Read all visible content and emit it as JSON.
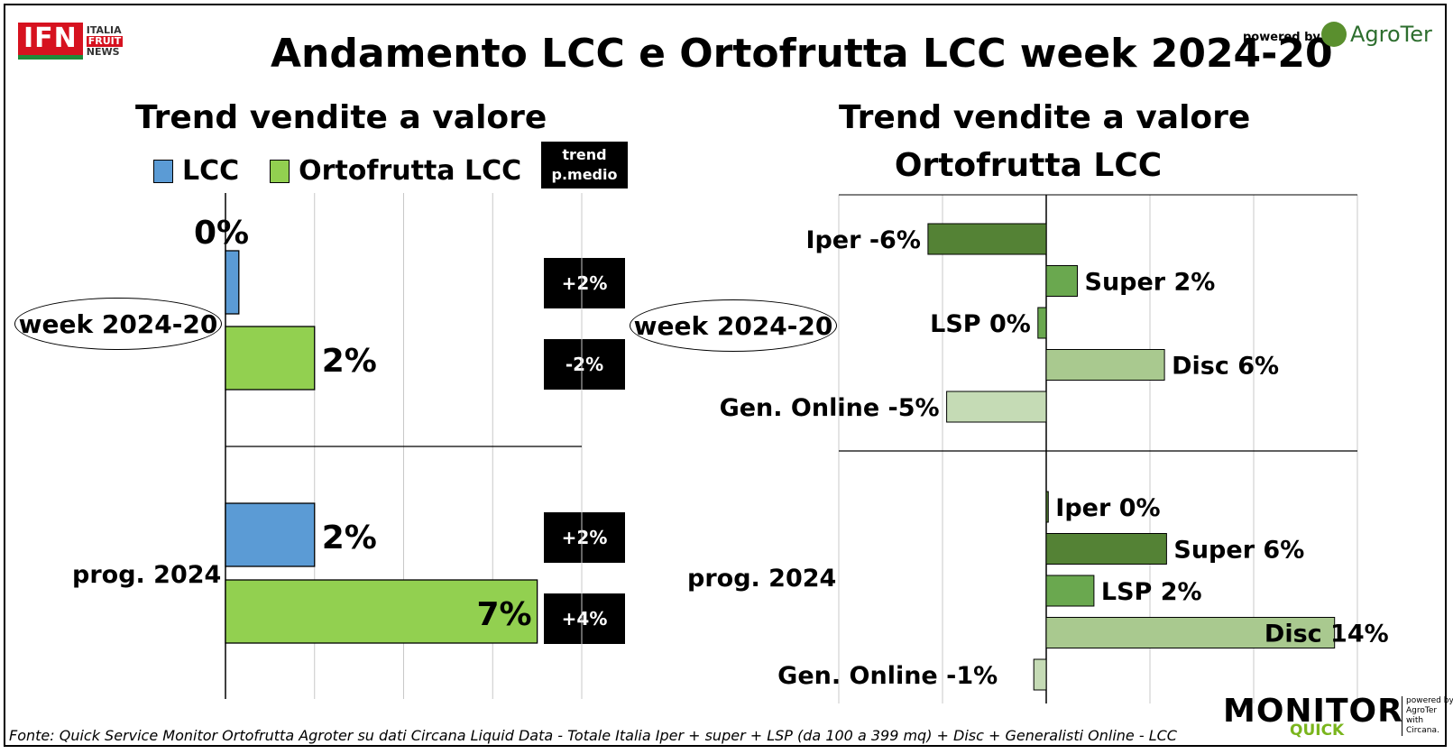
{
  "header": {
    "title": "Andamento LCC e Ortofrutta LCC week 2024-20",
    "logo_ifn": "IFN",
    "logo_ifn_side": [
      "ITALIA",
      "FRUIT",
      "NEWS"
    ],
    "powered_by": "powered by",
    "agroter": "AgroTer"
  },
  "left_panel": {
    "subtitle": "Trend vendite a valore",
    "legend": {
      "lcc": "LCC",
      "orto": "Ortofrutta LCC"
    },
    "trend_header": [
      "trend",
      "p.medio"
    ],
    "groups": {
      "week": "week 2024-20",
      "prog": "prog. 2024"
    },
    "trend_boxes": {
      "week_lcc": "+2%",
      "week_orto": "-2%",
      "prog_lcc": "+2%",
      "prog_orto": "+4%"
    }
  },
  "right_panel": {
    "subtitle_line1": "Trend vendite a valore",
    "subtitle_line2": "Ortofrutta LCC",
    "groups": {
      "week": "week 2024-20",
      "prog": "prog. 2024"
    }
  },
  "chart_data": [
    {
      "type": "bar",
      "orientation": "horizontal",
      "title": "Trend vendite a valore",
      "categories": [
        "week 2024-20",
        "prog. 2024"
      ],
      "series": [
        {
          "name": "LCC",
          "values": [
            0.3,
            2
          ],
          "labels": [
            "0%",
            "2%"
          ],
          "color": "#5b9bd5"
        },
        {
          "name": "Ortofrutta LCC",
          "values": [
            2,
            7
          ],
          "labels": [
            "2%",
            "7%"
          ],
          "color": "#92d050"
        }
      ],
      "xlim": [
        0,
        8
      ],
      "grid": true,
      "legend": "top"
    },
    {
      "type": "bar",
      "orientation": "horizontal",
      "title": "Trend vendite a valore Ortofrutta LCC",
      "xlim": [
        -10,
        15
      ],
      "grid": true,
      "groups": [
        {
          "name": "week 2024-20",
          "bars": [
            {
              "label": "Iper -6%",
              "value": -5.7,
              "color": "#548235"
            },
            {
              "label": "Super 2%",
              "value": 1.5,
              "color": "#6aa84f"
            },
            {
              "label": "LSP 0%",
              "value": -0.4,
              "color": "#6aa84f"
            },
            {
              "label": "Disc 6%",
              "value": 5.7,
              "color": "#a9c98f"
            },
            {
              "label": "Gen. Online -5%",
              "value": -4.8,
              "color": "#c5dbb5"
            }
          ]
        },
        {
          "name": "prog. 2024",
          "bars": [
            {
              "label": "Iper 0%",
              "value": 0.1,
              "color": "#548235"
            },
            {
              "label": "Super 6%",
              "value": 5.8,
              "color": "#548235"
            },
            {
              "label": "LSP 2%",
              "value": 2.3,
              "color": "#6aa84f"
            },
            {
              "label": "Disc 14%",
              "value": 13.9,
              "color": "#a9c98f"
            },
            {
              "label": "Gen. Online -1%",
              "value": -0.6,
              "color": "#c5dbb5"
            }
          ]
        }
      ]
    }
  ],
  "footer": {
    "source": "Fonte: Quick Service Monitor Ortofrutta Agroter su dati Circana Liquid Data - Totale Italia Iper + super + LSP (da 100 a 399 mq) + Disc + Generalisti Online - LCC"
  },
  "monitor_logo": {
    "monitor": "MONITOR",
    "quick": "QUICK",
    "side": [
      "powered by",
      "AgroTer",
      "with",
      "Circana."
    ]
  }
}
